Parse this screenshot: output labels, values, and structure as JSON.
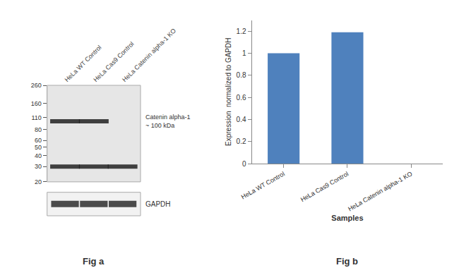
{
  "chart_data": [
    {
      "type": "blot",
      "title": "Fig a",
      "categories": [
        "HeLa WT Control",
        "HeLa Cas9 Control",
        "HeLa Catenin alpha-1 KO"
      ],
      "series": [
        {
          "values": [
            100,
            100,
            null
          ]
        },
        {
          "values": [
            30,
            30,
            30
          ]
        }
      ],
      "color": "#222222",
      "log": "y",
      "ylim": [
        20,
        260
      ],
      "yticks": [
        260,
        160,
        110,
        80,
        60,
        50,
        40,
        30,
        20
      ],
      "annotations": [
        "Catenin alpha-1\n~ 100 kDa",
        "GAPDH"
      ],
      "grid": false
    },
    {
      "type": "bar",
      "title": "Fig b",
      "categories": [
        "HeLa WT Control",
        "HeLa Cas9 Control",
        "HeLa Catenin alpha-1 KO"
      ],
      "values": [
        1.0,
        1.19,
        0.0
      ],
      "color": "#4f81bd",
      "xlabel": "Samples",
      "ylabel": "Expression  normalized to GAPDH",
      "ylim": [
        0,
        1.3
      ],
      "yticks": [
        0,
        0.2,
        0.4,
        0.6,
        0.8,
        1,
        1.2
      ],
      "grid": false
    }
  ]
}
